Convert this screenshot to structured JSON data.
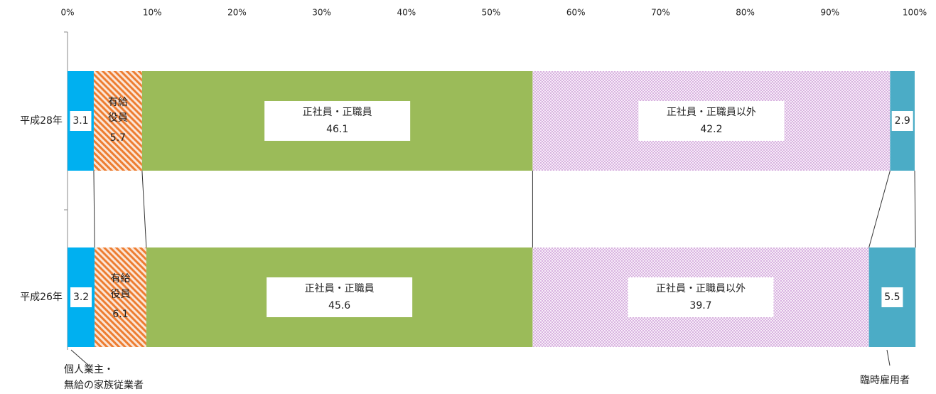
{
  "chart_data": {
    "type": "stacked-bar-horizontal",
    "categories": [
      "平成28年",
      "平成26年"
    ],
    "series": [
      {
        "name": "個人業主・無給の家族従業者",
        "color": "#00b0f0",
        "values": [
          3.1,
          3.2
        ]
      },
      {
        "name": "有給役員",
        "color": "#f4b183",
        "values": [
          5.7,
          6.1
        ]
      },
      {
        "name": "正社員・正職員",
        "color": "#9bbb59",
        "values": [
          46.1,
          45.6
        ]
      },
      {
        "name": "正社員・正職員以外",
        "color": "#d9a6e0",
        "values": [
          42.2,
          39.7
        ]
      },
      {
        "name": "臨時雇用者",
        "color": "#4bacc6",
        "values": [
          2.9,
          5.5
        ]
      }
    ],
    "xlim": [
      0,
      100
    ],
    "xticks": [
      {
        "value": 0,
        "label": "0%"
      },
      {
        "value": 10,
        "label": "10%"
      },
      {
        "value": 20,
        "label": "20%"
      },
      {
        "value": 30,
        "label": "30%"
      },
      {
        "value": 40,
        "label": "40%"
      },
      {
        "value": 50,
        "label": "50%"
      },
      {
        "value": 60,
        "label": "60%"
      },
      {
        "value": 70,
        "label": "70%"
      },
      {
        "value": 80,
        "label": "80%"
      },
      {
        "value": 90,
        "label": "90%"
      },
      {
        "value": 100,
        "label": "100%"
      }
    ]
  }
}
